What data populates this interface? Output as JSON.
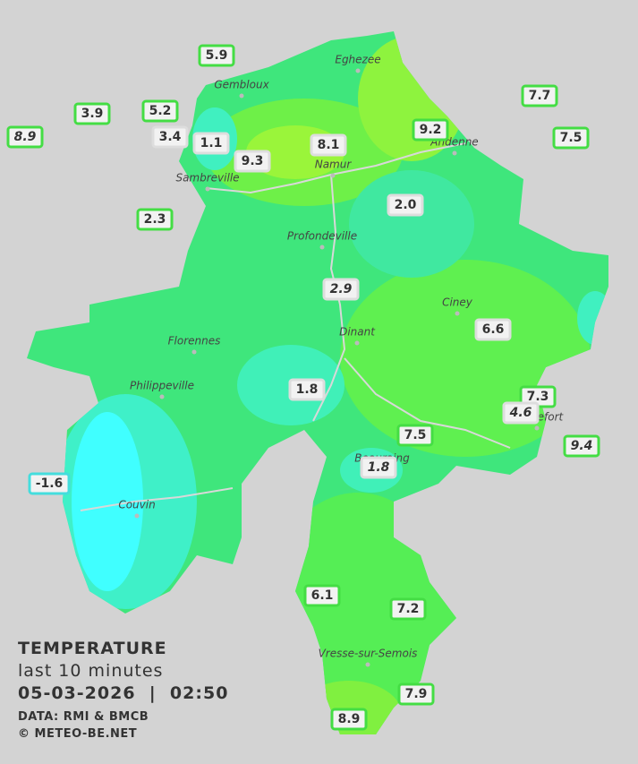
{
  "map": {
    "title": "TEMPERATURE",
    "subtitle": "last 10 minutes",
    "datetime": "05-03-2026  |  02:50",
    "credits": [
      "DATA: RMI & BMCB",
      "© METEO-BE.NET"
    ],
    "cities": [
      "Eghezee",
      "Gembloux",
      "Andenne",
      "Namur",
      "Sambreville",
      "Profondeville",
      "Ciney",
      "Dinant",
      "Florennes",
      "Philippeville",
      "Rochefort",
      "Beauraing",
      "Couvin",
      "Vresse-sur-Semois"
    ],
    "stations": [
      {
        "label": "5.9",
        "border": "#44dd44"
      },
      {
        "label": "7.7",
        "border": "#44dd44"
      },
      {
        "label": "3.9",
        "border": "#44dd44"
      },
      {
        "label": "5.2",
        "border": "#44dd44"
      },
      {
        "label": "8.9",
        "border": "#44dd44",
        "italic": true
      },
      {
        "label": "3.4",
        "border": "#dddddd"
      },
      {
        "label": "1.1",
        "border": "#dddddd"
      },
      {
        "label": "8.1",
        "border": "#dddddd"
      },
      {
        "label": "9.2",
        "border": "#44dd44"
      },
      {
        "label": "7.5",
        "border": "#44dd44"
      },
      {
        "label": "9.3",
        "border": "#dddddd"
      },
      {
        "label": "2.3",
        "border": "#44dd44"
      },
      {
        "label": "2.0",
        "border": "#dddddd"
      },
      {
        "label": "2.9",
        "border": "#dddddd",
        "italic": true
      },
      {
        "label": "6.6",
        "border": "#dddddd"
      },
      {
        "label": "1.8",
        "border": "#dddddd"
      },
      {
        "label": "7.3",
        "border": "#44dd44"
      },
      {
        "label": "4.6",
        "border": "#dddddd",
        "italic": true
      },
      {
        "label": "9.4",
        "border": "#44dd44",
        "italic": true
      },
      {
        "label": "7.5",
        "border": "#44dd44"
      },
      {
        "label": "1.8",
        "border": "#dddddd",
        "italic": true
      },
      {
        "label": "-1.6",
        "border": "#44dddd"
      },
      {
        "label": "6.1",
        "border": "#44dd44"
      },
      {
        "label": "7.2",
        "border": "#44dd44"
      },
      {
        "label": "7.9",
        "border": "#44dd44"
      },
      {
        "label": "8.9",
        "border": "#44dd44"
      }
    ]
  }
}
